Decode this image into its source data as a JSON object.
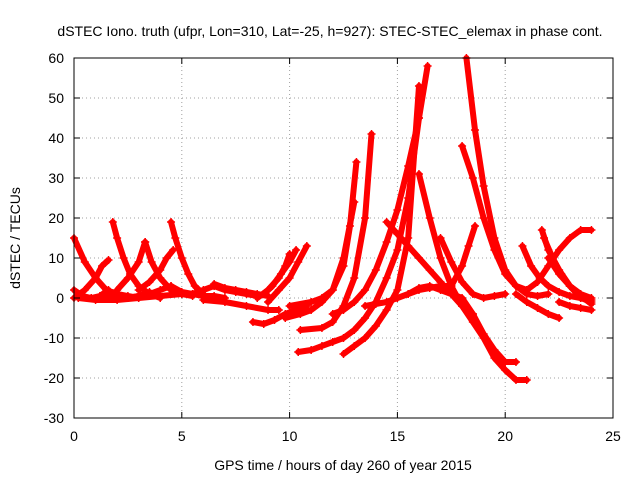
{
  "chart_data": {
    "type": "scatter",
    "title": "dSTEC Iono. truth (ufpr, Lon=310, Lat=-25, h=927): STEC-STEC_elemax in phase cont.",
    "xlabel": "GPS time / hours of day 260 of year 2015",
    "ylabel": "dSTEC  / TECUs",
    "xlim": [
      0,
      25
    ],
    "ylim": [
      -30,
      60
    ],
    "xticks": [
      0,
      5,
      10,
      15,
      20,
      25
    ],
    "yticks": [
      -30,
      -20,
      -10,
      0,
      10,
      20,
      30,
      40,
      50,
      60
    ],
    "grid": true,
    "legend": "none",
    "marker": "plus",
    "color": "#ff0000",
    "series": [
      {
        "x": [
          0.0,
          0.5,
          1.0,
          1.5,
          2.0,
          2.5,
          3.0
        ],
        "y": [
          15,
          9,
          5,
          2,
          1,
          0.5,
          0
        ]
      },
      {
        "x": [
          0.0,
          0.4,
          0.8,
          1.2,
          1.6
        ],
        "y": [
          2,
          0.5,
          0,
          0.5,
          2
        ]
      },
      {
        "x": [
          0.0,
          0.5,
          1.0,
          1.3,
          1.6
        ],
        "y": [
          0,
          2,
          5,
          8,
          9.5
        ]
      },
      {
        "x": [
          0.2,
          1.0,
          2.0,
          3.0,
          4.0,
          5.0
        ],
        "y": [
          0,
          -0.5,
          -0.5,
          0,
          0.5,
          1
        ]
      },
      {
        "x": [
          1.8,
          2.0,
          2.3,
          2.6,
          3.0,
          3.5,
          4.0
        ],
        "y": [
          19,
          15,
          10,
          6,
          3,
          1,
          0
        ]
      },
      {
        "x": [
          1.4,
          2.0,
          2.5,
          3.0,
          3.5
        ],
        "y": [
          1,
          0.5,
          0,
          0.5,
          1.5
        ]
      },
      {
        "x": [
          2.0,
          2.5,
          3.0,
          3.3
        ],
        "y": [
          2,
          5,
          9,
          14
        ]
      },
      {
        "x": [
          2.5,
          3.0,
          3.5,
          4.0,
          4.5
        ],
        "y": [
          0,
          0.5,
          1,
          2,
          3
        ]
      },
      {
        "x": [
          3.3,
          3.6,
          4.0,
          4.5,
          5.0,
          5.5
        ],
        "y": [
          14,
          9,
          5,
          2,
          1,
          0.5
        ]
      },
      {
        "x": [
          3.0,
          3.5,
          4.0,
          4.3,
          4.6
        ],
        "y": [
          2,
          4,
          7,
          10,
          12
        ]
      },
      {
        "x": [
          4.5,
          4.7,
          5.0,
          5.3,
          5.6,
          6.0
        ],
        "y": [
          19,
          15,
          10,
          6,
          3,
          1
        ]
      },
      {
        "x": [
          4.5,
          5.0,
          5.5,
          6.0,
          6.5,
          7.0
        ],
        "y": [
          3,
          1.5,
          1,
          0.5,
          0.5,
          0
        ]
      },
      {
        "x": [
          5.5,
          6.0,
          6.5,
          7.0,
          7.5,
          8.0,
          8.5
        ],
        "y": [
          1,
          2,
          3,
          2,
          1.5,
          1,
          0.5
        ]
      },
      {
        "x": [
          6.0,
          7.0,
          8.0,
          9.0,
          9.5
        ],
        "y": [
          -0.5,
          -1,
          -2,
          -3,
          -3
        ]
      },
      {
        "x": [
          6.5,
          7.0,
          7.5,
          8.0,
          8.5,
          9.0
        ],
        "y": [
          3.5,
          2.5,
          2,
          1.5,
          1,
          0.5
        ]
      },
      {
        "x": [
          8.5,
          9.0,
          9.5,
          9.8,
          10.0
        ],
        "y": [
          0,
          2,
          5,
          8,
          11
        ]
      },
      {
        "x": [
          8.8,
          9.2,
          9.6,
          10.0,
          10.3
        ],
        "y": [
          1,
          3,
          6,
          9,
          12
        ]
      },
      {
        "x": [
          9.0,
          9.5,
          10.0,
          10.4,
          10.8
        ],
        "y": [
          -1,
          2,
          5,
          9,
          13
        ]
      },
      {
        "x": [
          8.3,
          8.8,
          9.3,
          9.8,
          10.3,
          10.8
        ],
        "y": [
          -6,
          -6.5,
          -5.5,
          -4,
          -3,
          -2
        ]
      },
      {
        "x": [
          9.8,
          10.5,
          11.0,
          11.5,
          12.0,
          12.5,
          13.0
        ],
        "y": [
          -5,
          -4,
          -3,
          -1,
          2,
          10,
          24
        ]
      },
      {
        "x": [
          10.0,
          11.0,
          11.5,
          12.0,
          12.5,
          12.8,
          13.1
        ],
        "y": [
          -2,
          -1,
          0,
          2,
          8,
          18,
          34
        ]
      },
      {
        "x": [
          10.5,
          11.5,
          12.0,
          12.5,
          13.0,
          13.5,
          13.8
        ],
        "y": [
          -8,
          -7.5,
          -6,
          -2,
          5,
          20,
          41
        ]
      },
      {
        "x": [
          10.4,
          11.0,
          11.5,
          12.0,
          12.5,
          13.0,
          13.5,
          14.0,
          14.5,
          15.0,
          15.5,
          16.0
        ],
        "y": [
          -13.5,
          -13,
          -12,
          -11,
          -10,
          -8,
          -5,
          -1,
          5,
          12,
          25,
          45
        ]
      },
      {
        "x": [
          12.0,
          12.5,
          13.0,
          13.5,
          14.0,
          14.5,
          15.0,
          15.5,
          16.0,
          16.4
        ],
        "y": [
          -4,
          -3,
          -1,
          2,
          7,
          14,
          22,
          33,
          45,
          58
        ]
      },
      {
        "x": [
          12.5,
          13.0,
          13.5,
          14.0,
          14.5,
          15.0,
          15.5,
          16.0
        ],
        "y": [
          -14,
          -12,
          -10,
          -7,
          -3,
          2,
          15,
          53
        ]
      },
      {
        "x": [
          13.5,
          14.0,
          14.5,
          15.0,
          15.5,
          16.0,
          16.5,
          17.0,
          17.5
        ],
        "y": [
          -2,
          -1.5,
          -1,
          0,
          1,
          2,
          2.5,
          3,
          3
        ]
      },
      {
        "x": [
          15.5,
          16.0,
          16.5,
          17.0,
          17.5,
          18.0,
          18.5,
          19.0,
          19.5,
          20.0,
          20.5
        ],
        "y": [
          1,
          2.5,
          3,
          2,
          1,
          0,
          -4,
          -9,
          -13,
          -16,
          -16
        ]
      },
      {
        "x": [
          14.5,
          15.0,
          15.5,
          16.0,
          16.5,
          17.0,
          17.5,
          18.0,
          18.5
        ],
        "y": [
          19,
          16,
          13,
          10,
          7,
          4,
          1,
          -2,
          -4
        ]
      },
      {
        "x": [
          16.0,
          16.5,
          17.0,
          17.5,
          18.0,
          18.5,
          19.0,
          19.5,
          20.0,
          20.5,
          21.0
        ],
        "y": [
          31,
          20,
          10,
          3,
          -2,
          -6,
          -10,
          -15,
          -18,
          -20.5,
          -20.5
        ]
      },
      {
        "x": [
          17.0,
          17.5,
          18.0,
          18.5,
          19.0,
          19.5,
          20.0
        ],
        "y": [
          15,
          9,
          4,
          1,
          0,
          0.5,
          1
        ]
      },
      {
        "x": [
          18.2,
          18.6,
          19.0,
          19.5,
          20.0,
          20.5,
          21.0,
          21.5,
          22.0
        ],
        "y": [
          60,
          42,
          28,
          15,
          7,
          3,
          1,
          0.5,
          1
        ]
      },
      {
        "x": [
          18.0,
          18.5,
          19.0,
          19.5,
          20.0,
          20.5,
          21.0
        ],
        "y": [
          38,
          30,
          20,
          12,
          6,
          3,
          2
        ]
      },
      {
        "x": [
          17.5,
          18.0,
          18.3,
          18.6
        ],
        "y": [
          3,
          8,
          13,
          18
        ]
      },
      {
        "x": [
          20.8,
          21.2,
          21.6,
          22.0,
          22.5,
          23.0,
          23.5,
          24.0
        ],
        "y": [
          13,
          8,
          5,
          3,
          1.5,
          0.5,
          0,
          -0.5
        ]
      },
      {
        "x": [
          21.0,
          21.5,
          22.0,
          22.5,
          23.0,
          23.5,
          24.0
        ],
        "y": [
          2,
          4,
          8,
          12,
          15,
          17,
          17
        ]
      },
      {
        "x": [
          21.7,
          22.0,
          22.5,
          23.0,
          23.5,
          24.0
        ],
        "y": [
          17,
          12,
          7,
          3,
          1,
          0
        ]
      },
      {
        "x": [
          21.8,
          22.2,
          22.6,
          23.0,
          23.5,
          24.0
        ],
        "y": [
          15,
          10,
          6,
          3,
          0,
          -1
        ]
      },
      {
        "x": [
          22.0,
          22.5,
          23.0,
          23.5,
          24.0
        ],
        "y": [
          10,
          6,
          3,
          0.5,
          -1.5
        ]
      },
      {
        "x": [
          20.5,
          21.0,
          21.5,
          22.0,
          22.5
        ],
        "y": [
          1,
          -1,
          -2.5,
          -4,
          -5
        ]
      },
      {
        "x": [
          22.5,
          23.0,
          23.5,
          24.0
        ],
        "y": [
          -1,
          -2,
          -2.5,
          -3
        ]
      }
    ]
  }
}
